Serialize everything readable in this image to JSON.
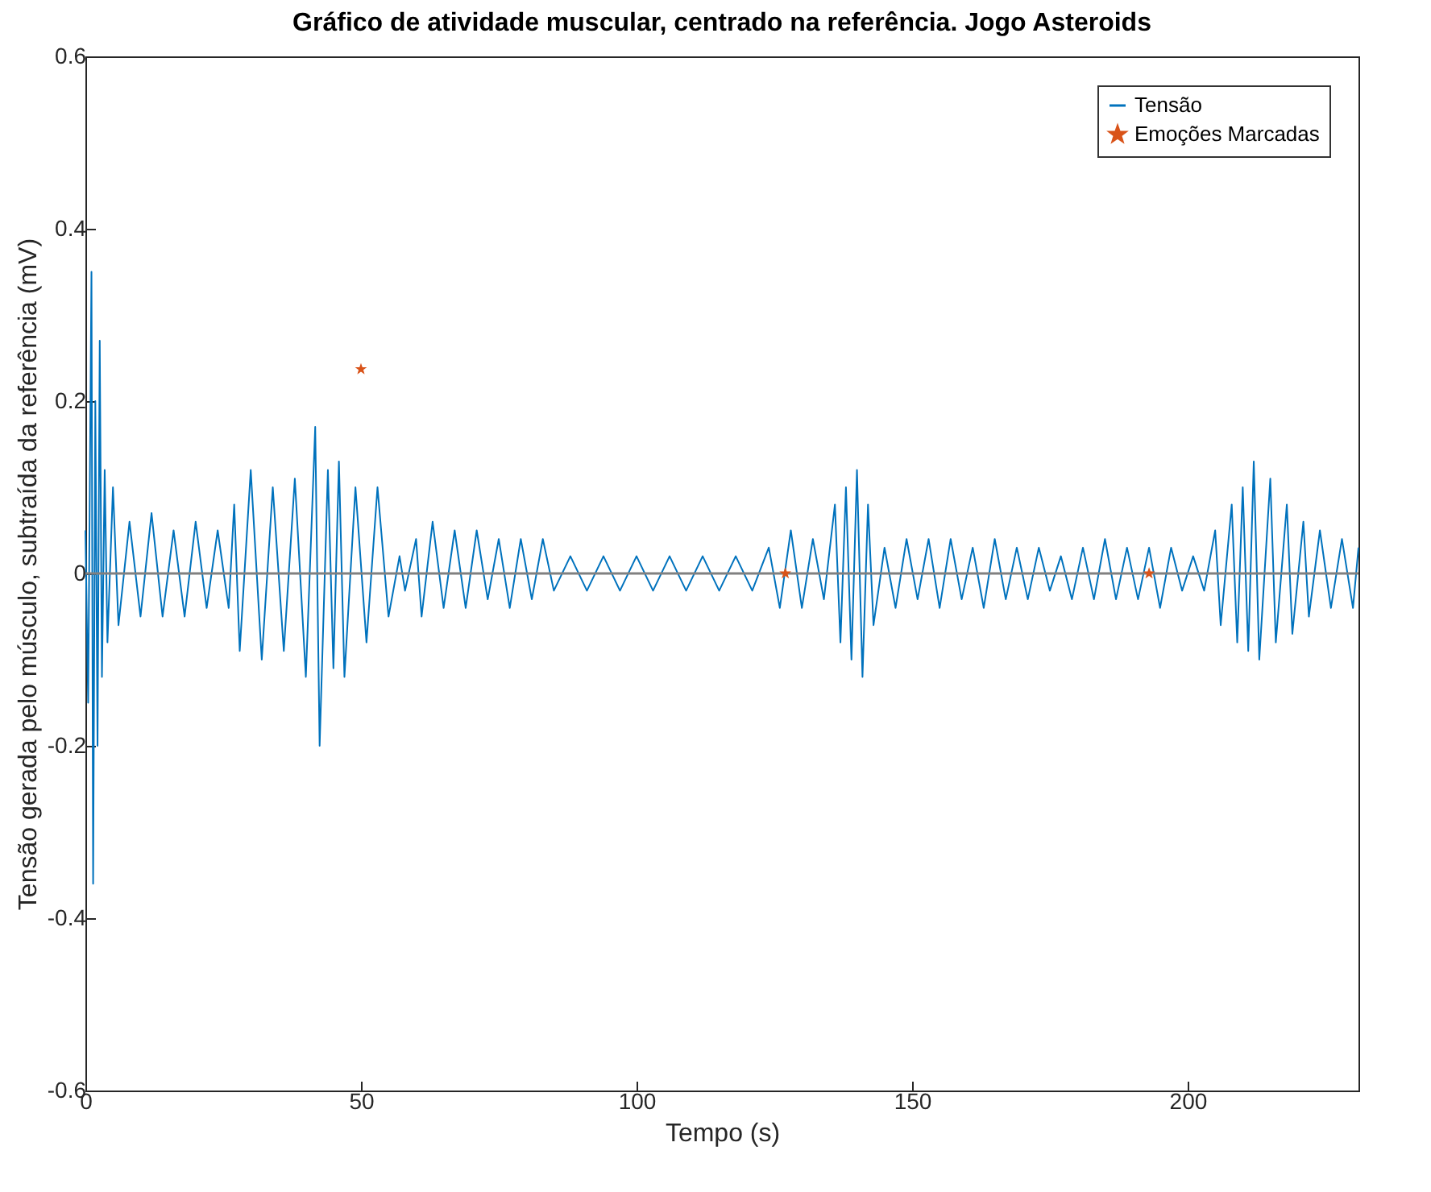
{
  "chart_data": {
    "type": "line",
    "title": "Gráfico de atividade muscular, centrado na referência. Jogo Asteroids",
    "xlabel": "Tempo (s)",
    "ylabel": "Tensão gerada pelo músculo, subtraída da referência (mV)",
    "xlim": [
      0,
      231
    ],
    "xticks": [
      0,
      50,
      100,
      150,
      200
    ],
    "ylim": [
      -0.6,
      0.6
    ],
    "yticks": [
      -0.6,
      -0.4,
      -0.2,
      0,
      0.2,
      0.4,
      0.6
    ],
    "grid": false,
    "legend": "top right",
    "ref_lines": [
      {
        "axis": "y",
        "value": 0,
        "color": "#808080"
      }
    ],
    "series": [
      {
        "name": "Tensão",
        "type": "line",
        "color": "#0072bd",
        "x": [
          0,
          0.5,
          1.1,
          1.4,
          1.8,
          2.2,
          2.6,
          3,
          3.5,
          4,
          5,
          6,
          8,
          10,
          12,
          14,
          16,
          18,
          20,
          22,
          24,
          26,
          27,
          28,
          30,
          32,
          34,
          36,
          38,
          40,
          41.7,
          42.5,
          44,
          45,
          46,
          47,
          49,
          51,
          53,
          55,
          57,
          58,
          60,
          61,
          63,
          65,
          67,
          69,
          71,
          73,
          75,
          77,
          79,
          81,
          83,
          85,
          88,
          91,
          94,
          97,
          100,
          103,
          106,
          109,
          112,
          115,
          118,
          121,
          124,
          126,
          128,
          130,
          132,
          134,
          136,
          137,
          138,
          139,
          140,
          141,
          142,
          143,
          145,
          147,
          149,
          151,
          153,
          155,
          157,
          159,
          161,
          163,
          165,
          167,
          169,
          171,
          173,
          175,
          177,
          179,
          181,
          183,
          185,
          187,
          189,
          191,
          193,
          195,
          197,
          199,
          201,
          203,
          205,
          206,
          208,
          209,
          210,
          211,
          212,
          213,
          215,
          216,
          218,
          219,
          221,
          222,
          224,
          226,
          228,
          230,
          231
        ],
        "values": [
          0.05,
          -0.15,
          0.35,
          -0.36,
          0.2,
          -0.2,
          0.27,
          -0.12,
          0.12,
          -0.08,
          0.1,
          -0.06,
          0.06,
          -0.05,
          0.07,
          -0.05,
          0.05,
          -0.05,
          0.06,
          -0.04,
          0.05,
          -0.04,
          0.08,
          -0.09,
          0.12,
          -0.1,
          0.1,
          -0.09,
          0.11,
          -0.12,
          0.17,
          -0.2,
          0.12,
          -0.11,
          0.13,
          -0.12,
          0.1,
          -0.08,
          0.1,
          -0.05,
          0.02,
          -0.02,
          0.04,
          -0.05,
          0.06,
          -0.04,
          0.05,
          -0.04,
          0.05,
          -0.03,
          0.04,
          -0.04,
          0.04,
          -0.03,
          0.04,
          -0.02,
          0.02,
          -0.02,
          0.02,
          -0.02,
          0.02,
          -0.02,
          0.02,
          -0.02,
          0.02,
          -0.02,
          0.02,
          -0.02,
          0.03,
          -0.04,
          0.05,
          -0.04,
          0.04,
          -0.03,
          0.08,
          -0.08,
          0.1,
          -0.1,
          0.12,
          -0.12,
          0.08,
          -0.06,
          0.03,
          -0.04,
          0.04,
          -0.03,
          0.04,
          -0.04,
          0.04,
          -0.03,
          0.03,
          -0.04,
          0.04,
          -0.03,
          0.03,
          -0.03,
          0.03,
          -0.02,
          0.02,
          -0.03,
          0.03,
          -0.03,
          0.04,
          -0.03,
          0.03,
          -0.03,
          0.03,
          -0.04,
          0.03,
          -0.02,
          0.02,
          -0.02,
          0.05,
          -0.06,
          0.08,
          -0.08,
          0.1,
          -0.09,
          0.13,
          -0.1,
          0.11,
          -0.08,
          0.08,
          -0.07,
          0.06,
          -0.05,
          0.05,
          -0.04,
          0.04,
          -0.04,
          0.03
        ]
      },
      {
        "name": "Emoções Marcadas",
        "type": "scatter",
        "marker": "star",
        "color": "#d95319",
        "x": [
          50,
          127,
          193
        ],
        "values": [
          0.237,
          0,
          0
        ]
      }
    ]
  }
}
